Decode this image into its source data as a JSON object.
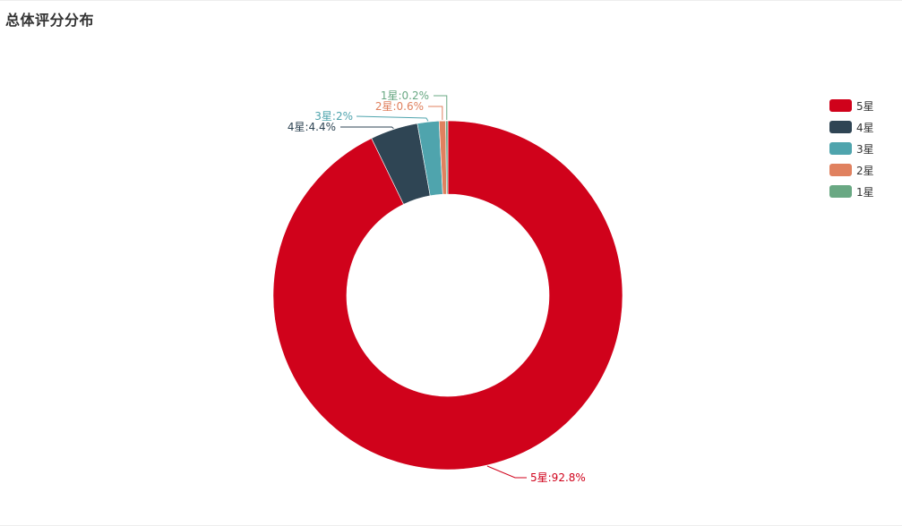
{
  "chart_data": {
    "type": "pie",
    "title": "总体评分分布",
    "donut": true,
    "legend_position": "top-right",
    "slices": [
      {
        "name": "5星",
        "value": 92.8,
        "label": "5星:92.8%",
        "color": "#d0021b"
      },
      {
        "name": "4星",
        "value": 4.4,
        "label": "4星:4.4%",
        "color": "#2f4554"
      },
      {
        "name": "3星",
        "value": 2,
        "label": "3星:2%",
        "color": "#4fa4ad"
      },
      {
        "name": "2星",
        "value": 0.6,
        "label": "2星:0.6%",
        "color": "#e0815f"
      },
      {
        "name": "1星",
        "value": 0.2,
        "label": "1星:0.2%",
        "color": "#69a883"
      }
    ]
  }
}
